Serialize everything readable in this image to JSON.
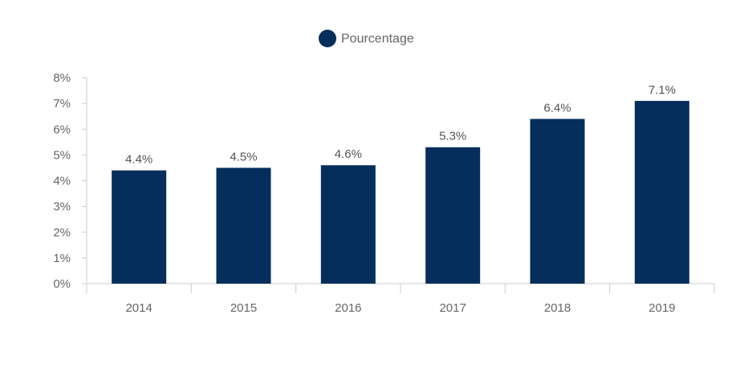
{
  "chart_data": {
    "type": "bar",
    "categories": [
      "2014",
      "2015",
      "2016",
      "2017",
      "2018",
      "2019"
    ],
    "series": [
      {
        "name": "Pourcentage",
        "values": [
          4.4,
          4.5,
          4.6,
          5.3,
          6.4,
          7.1
        ],
        "color": "#062e5c"
      }
    ],
    "data_labels": [
      "4.4%",
      "4.5%",
      "4.6%",
      "5.3%",
      "6.4%",
      "7.1%"
    ],
    "y_ticks": [
      0,
      1,
      2,
      3,
      4,
      5,
      6,
      7,
      8
    ],
    "y_tick_labels": [
      "0%",
      "1%",
      "2%",
      "3%",
      "4%",
      "5%",
      "6%",
      "7%",
      "8%"
    ],
    "ylim": [
      0,
      8
    ],
    "grid": false,
    "legend_position": "top-center",
    "colors": {
      "bar": "#062e5c",
      "axis": "#cccccc",
      "label_text": "#666666",
      "value_text": "#555555"
    }
  }
}
